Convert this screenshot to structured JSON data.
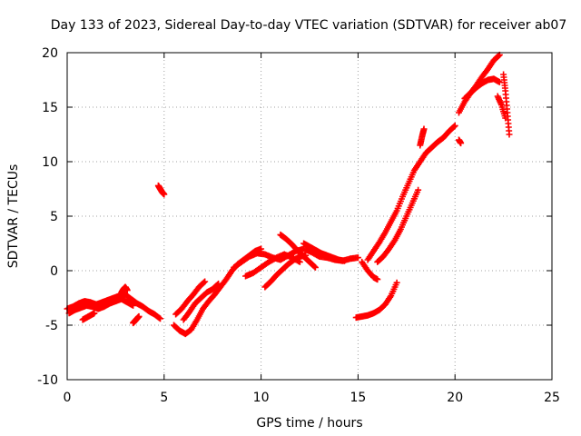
{
  "chart_data": {
    "type": "scatter",
    "title": "Day 133 of 2023, Sidereal Day-to-day VTEC variation (SDTVAR) for receiver ab07",
    "xlabel": "GPS time / hours",
    "ylabel": "SDTVAR / TECUs",
    "xlim": [
      0,
      25
    ],
    "ylim": [
      -10,
      20
    ],
    "xticks": [
      0,
      5,
      10,
      15,
      20,
      25
    ],
    "yticks": [
      -10,
      -5,
      0,
      5,
      10,
      15,
      20
    ],
    "grid": true,
    "marker": "+",
    "color": "#ff0000",
    "series": [
      {
        "name": "seg-early-a",
        "x": [
          0.0,
          0.3,
          0.6,
          0.9,
          1.2,
          1.5,
          1.8,
          2.1,
          2.4,
          2.7,
          3.0,
          3.3,
          3.6,
          3.9,
          4.2,
          4.5,
          4.8
        ],
        "y": [
          -3.5,
          -3.3,
          -3.0,
          -2.8,
          -2.9,
          -3.1,
          -2.9,
          -2.7,
          -2.5,
          -2.3,
          -2.2,
          -2.6,
          -3.0,
          -3.3,
          -3.7,
          -4.0,
          -4.4
        ]
      },
      {
        "name": "seg-early-b",
        "x": [
          0.1,
          0.4,
          0.7,
          1.0,
          1.3,
          1.6,
          1.9,
          2.2,
          2.5,
          2.8,
          3.1,
          3.4
        ],
        "y": [
          -3.9,
          -3.6,
          -3.4,
          -3.2,
          -3.3,
          -3.5,
          -3.3,
          -3.0,
          -2.8,
          -2.6,
          -2.9,
          -3.2
        ]
      },
      {
        "name": "seg-early-c",
        "x": [
          0.8,
          1.0,
          1.2,
          1.4
        ],
        "y": [
          -4.5,
          -4.3,
          -4.1,
          -3.9
        ]
      },
      {
        "name": "seg-early-d",
        "x": [
          2.8,
          2.9,
          3.0,
          3.1
        ],
        "y": [
          -2.0,
          -1.7,
          -1.5,
          -1.8
        ]
      },
      {
        "name": "seg-early-e",
        "x": [
          3.4,
          3.5,
          3.6,
          3.7
        ],
        "y": [
          -4.8,
          -4.6,
          -4.4,
          -4.2
        ]
      },
      {
        "name": "seg-isolated",
        "x": [
          4.7,
          4.8,
          4.9,
          5.0
        ],
        "y": [
          7.8,
          7.5,
          7.2,
          7.0
        ]
      },
      {
        "name": "seg-dip-a",
        "x": [
          5.5,
          5.8,
          6.1,
          6.4,
          6.7,
          7.0,
          7.3,
          7.6,
          7.9,
          8.2,
          8.5,
          8.8,
          9.1,
          9.4,
          9.7,
          10.0
        ],
        "y": [
          -5.0,
          -5.5,
          -5.8,
          -5.4,
          -4.5,
          -3.5,
          -2.8,
          -2.2,
          -1.5,
          -0.8,
          0.0,
          0.6,
          1.0,
          1.4,
          1.8,
          2.0
        ]
      },
      {
        "name": "seg-dip-b",
        "x": [
          5.6,
          5.9,
          6.2,
          6.5,
          6.8,
          7.1
        ],
        "y": [
          -4.0,
          -3.5,
          -2.8,
          -2.2,
          -1.5,
          -1.0
        ]
      },
      {
        "name": "seg-dip-c",
        "x": [
          6.0,
          6.3,
          6.6,
          6.9,
          7.2,
          7.5,
          7.8
        ],
        "y": [
          -4.5,
          -3.8,
          -3.0,
          -2.5,
          -2.0,
          -1.7,
          -1.2
        ]
      },
      {
        "name": "seg-mid-a",
        "x": [
          8.6,
          9.0,
          9.4,
          9.8,
          10.2,
          10.6,
          11.0,
          11.4,
          11.8,
          12.2,
          12.6,
          13.0,
          13.4,
          13.8,
          14.2,
          14.6,
          15.0
        ],
        "y": [
          0.3,
          0.8,
          1.3,
          1.6,
          1.5,
          1.2,
          1.0,
          1.4,
          1.8,
          2.0,
          1.7,
          1.3,
          1.2,
          1.0,
          0.9,
          1.1,
          1.2
        ]
      },
      {
        "name": "seg-mid-b",
        "x": [
          9.2,
          9.6,
          10.0,
          10.4,
          10.8,
          11.2,
          11.6,
          12.0
        ],
        "y": [
          -0.5,
          -0.2,
          0.3,
          0.8,
          1.2,
          1.5,
          1.2,
          0.8
        ]
      },
      {
        "name": "seg-mid-c",
        "x": [
          10.2,
          10.5,
          10.8,
          11.1,
          11.4,
          11.7,
          12.0,
          12.3
        ],
        "y": [
          -1.5,
          -1.0,
          -0.4,
          0.1,
          0.6,
          1.0,
          1.3,
          1.4
        ]
      },
      {
        "name": "seg-mid-d",
        "x": [
          11.0,
          11.3,
          11.6,
          11.9,
          12.2,
          12.5,
          12.8
        ],
        "y": [
          3.3,
          2.9,
          2.4,
          1.8,
          1.3,
          0.8,
          0.3
        ]
      },
      {
        "name": "seg-mid-e",
        "x": [
          12.2,
          12.5,
          12.8,
          13.1,
          13.4,
          13.7,
          14.0,
          14.3
        ],
        "y": [
          2.5,
          2.2,
          1.9,
          1.6,
          1.4,
          1.2,
          1.0,
          0.9
        ]
      },
      {
        "name": "seg-mid-f",
        "x": [
          15.2,
          15.5,
          15.8,
          16.0
        ],
        "y": [
          0.8,
          0.0,
          -0.6,
          -0.8
        ]
      },
      {
        "name": "seg-low",
        "x": [
          14.9,
          15.2,
          15.5,
          15.8,
          16.1,
          16.4,
          16.7,
          17.0
        ],
        "y": [
          -4.3,
          -4.2,
          -4.1,
          -3.9,
          -3.6,
          -3.1,
          -2.3,
          -1.1
        ]
      },
      {
        "name": "seg-rise-a",
        "x": [
          15.5,
          15.8,
          16.1,
          16.4,
          16.7,
          17.0,
          17.3,
          17.6,
          17.9,
          18.2,
          18.5,
          18.8,
          19.1,
          19.4,
          19.7,
          20.0
        ],
        "y": [
          1.0,
          1.8,
          2.6,
          3.5,
          4.5,
          5.5,
          6.8,
          8.0,
          9.2,
          10.0,
          10.8,
          11.3,
          11.8,
          12.2,
          12.8,
          13.3
        ]
      },
      {
        "name": "seg-rise-b",
        "x": [
          16.0,
          16.3,
          16.6,
          16.9,
          17.2,
          17.5,
          17.8,
          18.1
        ],
        "y": [
          0.8,
          1.3,
          2.0,
          2.8,
          3.8,
          5.0,
          6.2,
          7.4
        ]
      },
      {
        "name": "seg-rise-c",
        "x": [
          18.2,
          18.3,
          18.4
        ],
        "y": [
          11.5,
          12.3,
          13.0
        ]
      },
      {
        "name": "seg-rise-d",
        "x": [
          20.2,
          20.3
        ],
        "y": [
          12.0,
          11.7
        ]
      },
      {
        "name": "seg-peak-a",
        "x": [
          20.2,
          20.5,
          20.8,
          21.1,
          21.4,
          21.7,
          22.0,
          22.3
        ],
        "y": [
          14.5,
          15.5,
          16.3,
          17.0,
          17.8,
          18.5,
          19.3,
          19.8
        ]
      },
      {
        "name": "seg-peak-b",
        "x": [
          20.5,
          20.8,
          21.1,
          21.4,
          21.7,
          22.0,
          22.3
        ],
        "y": [
          15.8,
          16.3,
          16.8,
          17.2,
          17.5,
          17.6,
          17.3
        ]
      },
      {
        "name": "seg-peak-c",
        "x": [
          22.5,
          22.6,
          22.7,
          22.8
        ],
        "y": [
          18.0,
          16.5,
          14.5,
          12.5
        ]
      },
      {
        "name": "seg-peak-d",
        "x": [
          22.2,
          22.4,
          22.6
        ],
        "y": [
          16.0,
          15.2,
          14.0
        ]
      }
    ]
  }
}
